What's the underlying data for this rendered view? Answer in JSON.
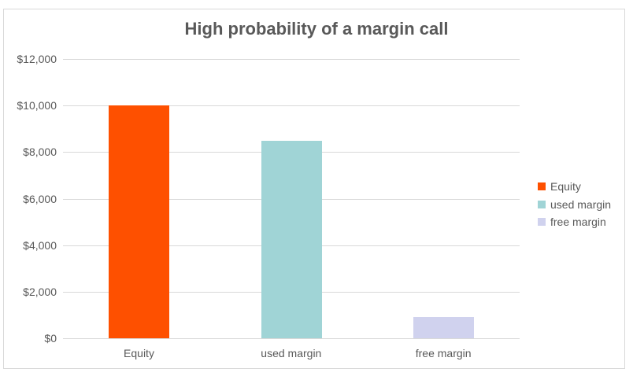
{
  "chart_data": {
    "type": "bar",
    "title": "High probability of a margin call",
    "categories": [
      "Equity",
      "used margin",
      "free margin"
    ],
    "values": [
      10000,
      8500,
      900
    ],
    "colors": [
      "#fe5000",
      "#a0d4d6",
      "#d0d2ee"
    ],
    "xlabel": "",
    "ylabel": "",
    "ylim": [
      0,
      12000
    ],
    "yticks": [
      "$0",
      "$2,000",
      "$4,000",
      "$6,000",
      "$8,000",
      "$10,000",
      "$12,000"
    ],
    "grid": true,
    "legend_position": "right",
    "legend": [
      "Equity",
      "used margin",
      "free margin"
    ]
  }
}
